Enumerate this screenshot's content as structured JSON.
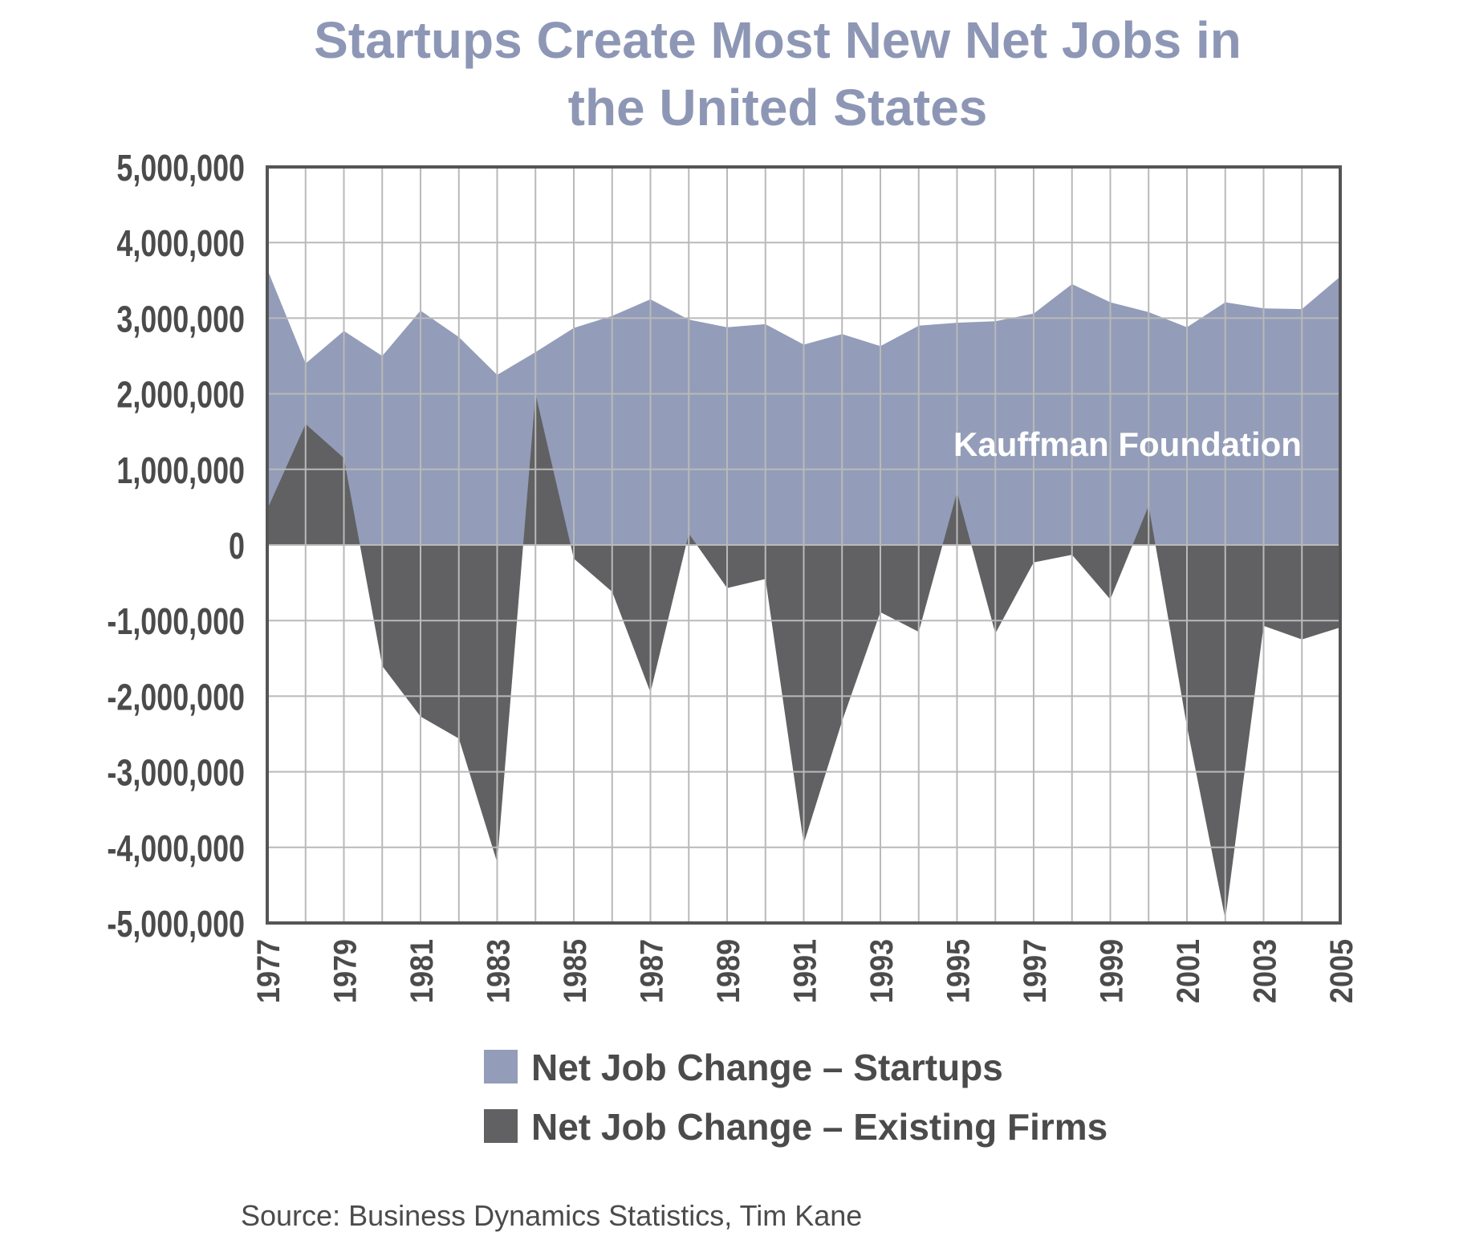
{
  "chart_data": {
    "type": "area",
    "title": "Startups Create Most New Net Jobs in the United States",
    "title_lines": [
      "Startups Create Most New Net Jobs in",
      "the United States"
    ],
    "watermark": "Kauffman Foundation",
    "source": "Source: Business Dynamics Statistics, Tim Kane",
    "x": [
      1977,
      1978,
      1979,
      1980,
      1981,
      1982,
      1983,
      1984,
      1985,
      1986,
      1987,
      1988,
      1989,
      1990,
      1991,
      1992,
      1993,
      1994,
      1995,
      1996,
      1997,
      1998,
      1999,
      2000,
      2001,
      2002,
      2003,
      2004,
      2005
    ],
    "x_tick_labels": [
      "1977",
      "1979",
      "1981",
      "1983",
      "1985",
      "1987",
      "1989",
      "1991",
      "1993",
      "1995",
      "1997",
      "1999",
      "2001",
      "2003",
      "2005"
    ],
    "y_tick_labels": [
      "5,000,000",
      "4,000,000",
      "3,000,000",
      "2,000,000",
      "1,000,000",
      "0",
      "-1,000,000",
      "-2,000,000",
      "-3,000,000",
      "-4,000,000",
      "-5,000,000"
    ],
    "ylim": [
      -5000000,
      5000000
    ],
    "grid": true,
    "legend_position": "bottom",
    "colors": {
      "startups": "#939db9",
      "existing": "#616163",
      "title": "#8d97b5",
      "grid": "#b9b9b9",
      "frame": "#555555",
      "text": "#4b4b4b"
    },
    "series": [
      {
        "name": "Net Job Change – Startups",
        "values": [
          3650000,
          2400000,
          2830000,
          2500000,
          3100000,
          2750000,
          2250000,
          2550000,
          2870000,
          3030000,
          3250000,
          2980000,
          2880000,
          2920000,
          2650000,
          2790000,
          2630000,
          2900000,
          2940000,
          2960000,
          3060000,
          3450000,
          3210000,
          3080000,
          2880000,
          3210000,
          3130000,
          3120000,
          3550000
        ]
      },
      {
        "name": "Net Job Change – Existing Firms",
        "values": [
          470000,
          1600000,
          1150000,
          -1600000,
          -2270000,
          -2560000,
          -4200000,
          2000000,
          -180000,
          -620000,
          -1950000,
          150000,
          -570000,
          -450000,
          -3950000,
          -2330000,
          -890000,
          -1150000,
          700000,
          -1170000,
          -230000,
          -130000,
          -720000,
          520000,
          -2400000,
          -4950000,
          -1070000,
          -1250000,
          -1090000
        ]
      }
    ]
  }
}
